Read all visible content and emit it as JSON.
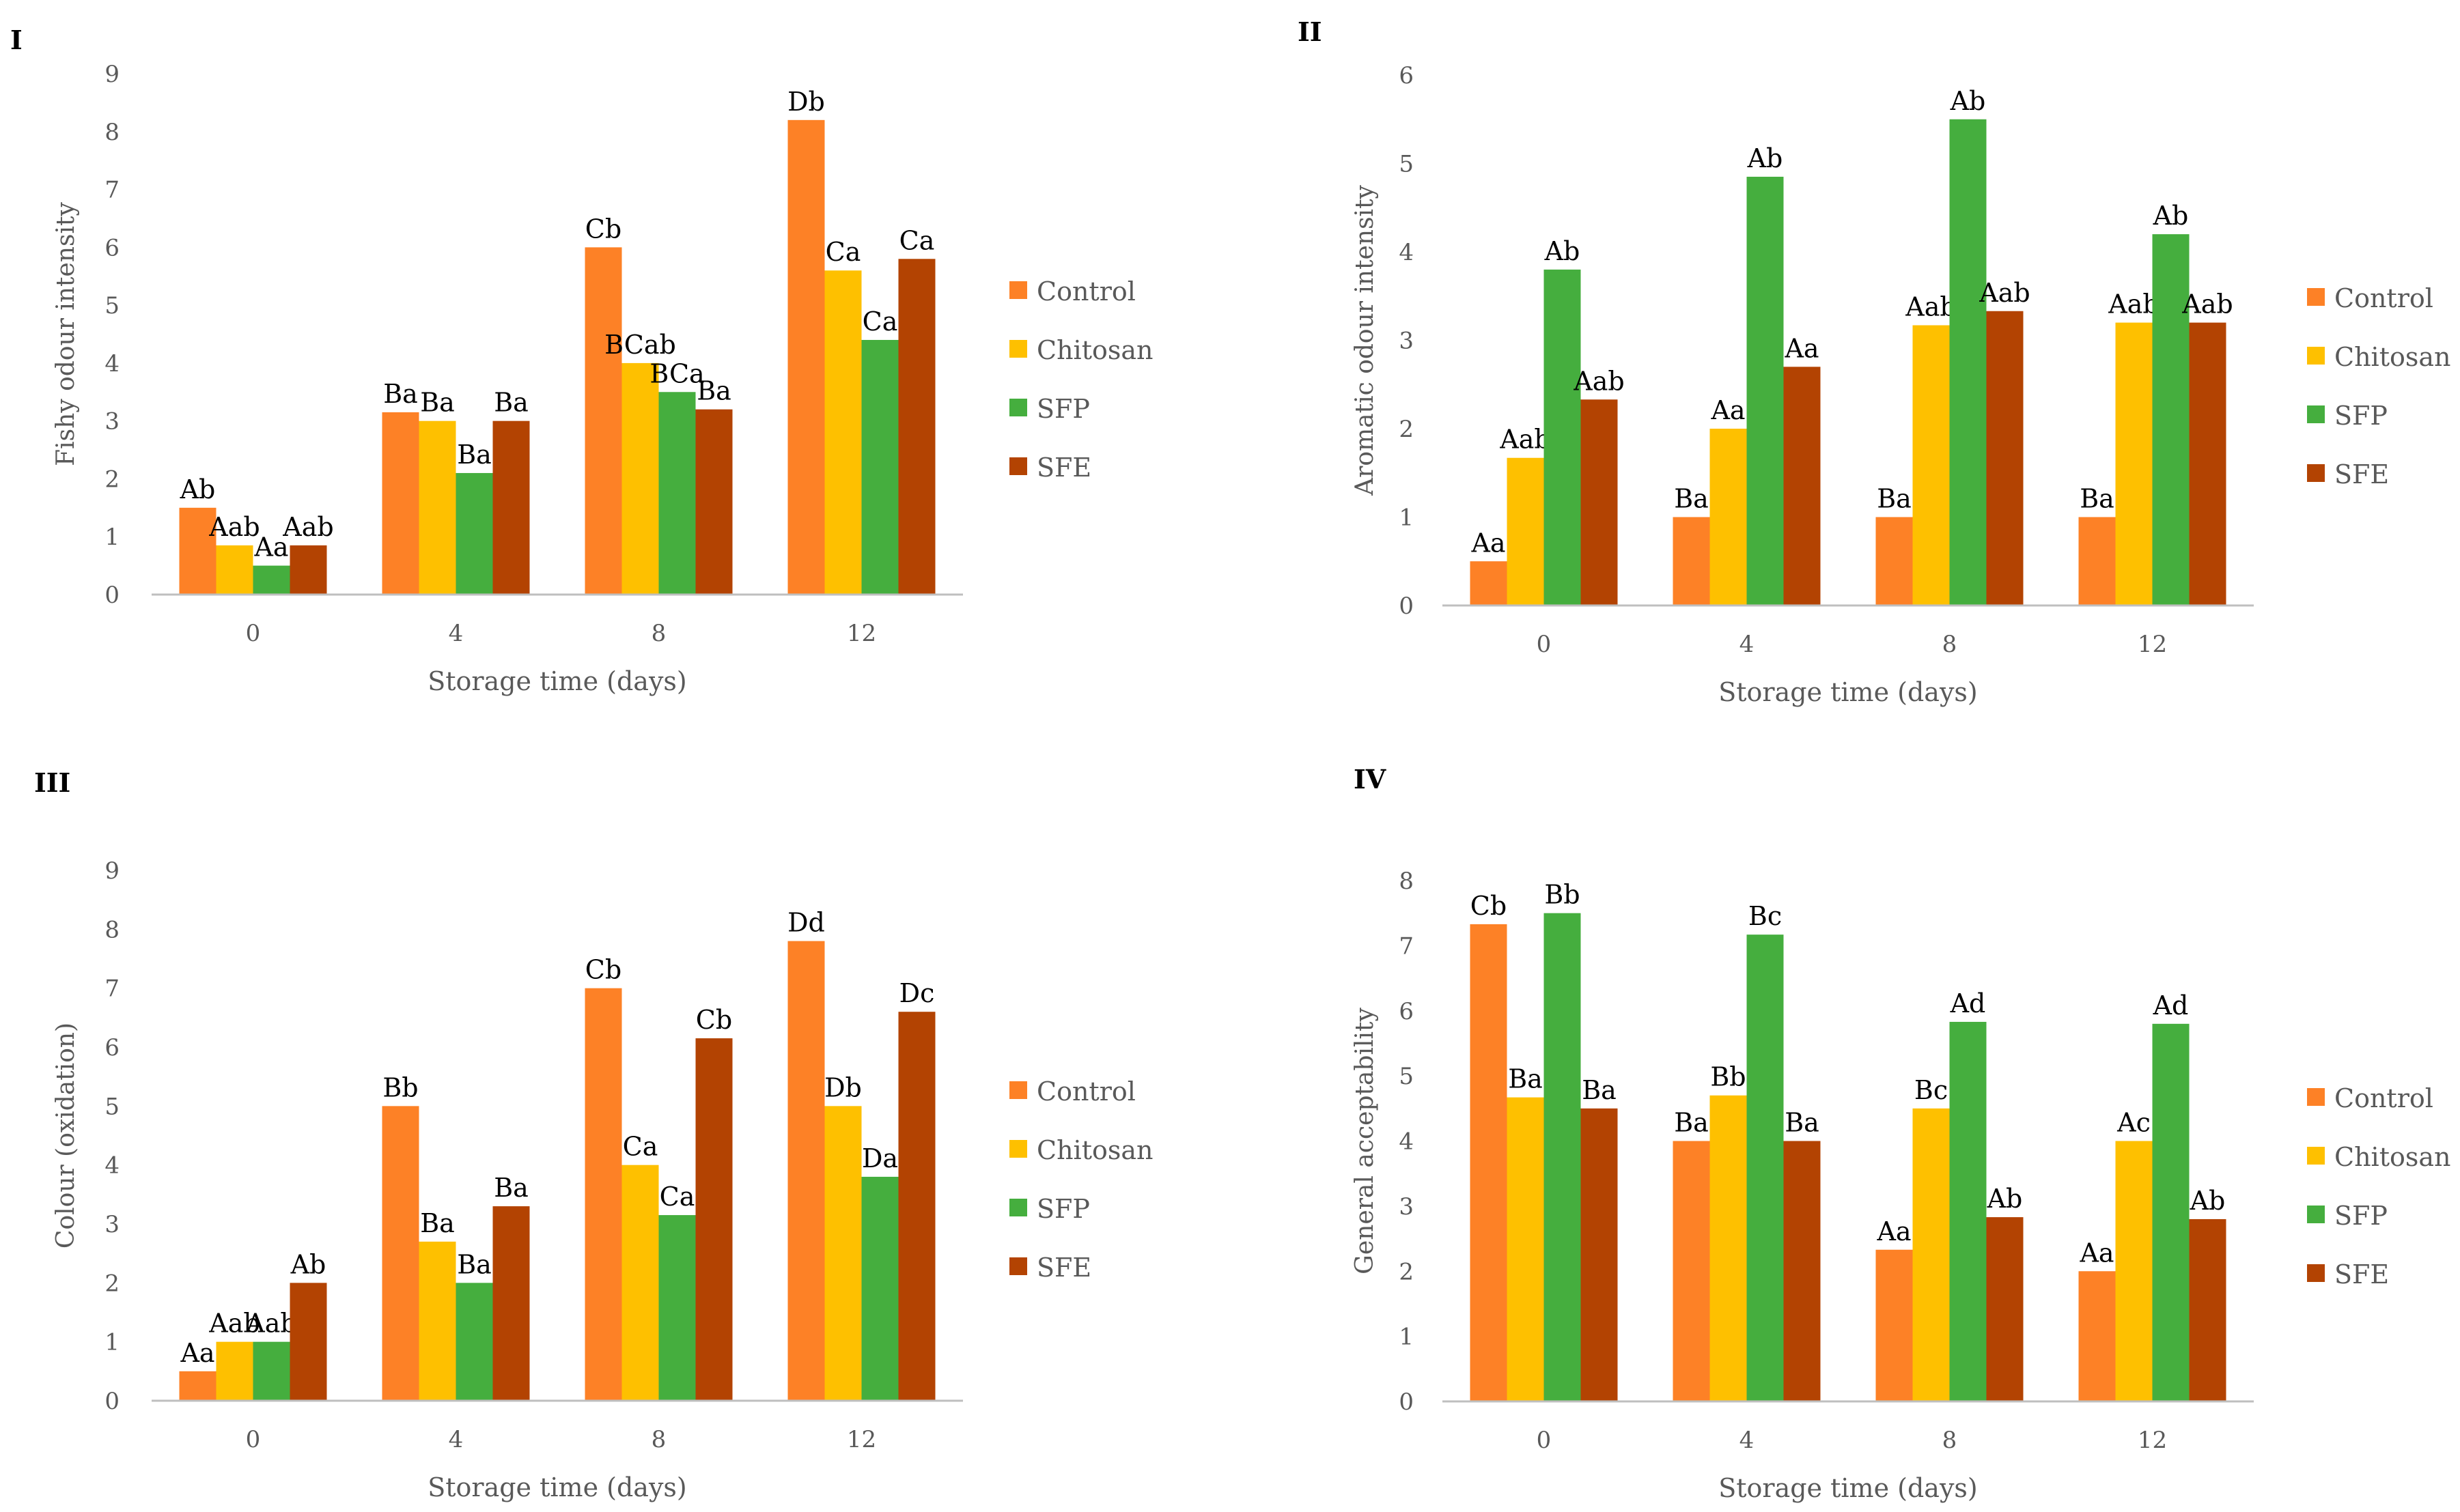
{
  "colors": {
    "Control": "#fd8126",
    "Chitosan": "#fec000",
    "SFP": "#45ae3e",
    "SFE": "#b34302",
    "axis": "#bfbfbf",
    "text": "#595959",
    "label": "#000000"
  },
  "chart_data": [
    {
      "panel": "I",
      "type": "bar",
      "title": "",
      "xlabel": "Storage time (days)",
      "ylabel": "Fishy odour intensity",
      "categories": [
        "0",
        "4",
        "8",
        "12"
      ],
      "ylim": [
        0,
        9
      ],
      "yticks": [
        "0",
        "1",
        "2",
        "3",
        "4",
        "5",
        "6",
        "7",
        "8",
        "9"
      ],
      "grid": false,
      "legend_position": "right",
      "series": [
        {
          "name": "Control",
          "values": [
            1.5,
            3.15,
            6.0,
            8.2
          ],
          "labels": [
            "Ab",
            "Ba",
            "Cb",
            "Db"
          ]
        },
        {
          "name": "Chitosan",
          "values": [
            0.85,
            3.0,
            4.0,
            5.6
          ],
          "labels": [
            "Aab",
            "Ba",
            "BCab",
            "Ca"
          ]
        },
        {
          "name": "SFP",
          "values": [
            0.5,
            2.1,
            3.5,
            4.4
          ],
          "labels": [
            "Aa",
            "Ba",
            "BCa",
            "Ca"
          ]
        },
        {
          "name": "SFE",
          "values": [
            0.85,
            3.0,
            3.2,
            5.8
          ],
          "labels": [
            "Aab",
            "Ba",
            "Ba",
            "Ca"
          ]
        }
      ]
    },
    {
      "panel": "II",
      "type": "bar",
      "title": "",
      "xlabel": "Storage time (days)",
      "ylabel": "Aromatic odour intensity",
      "categories": [
        "0",
        "4",
        "8",
        "12"
      ],
      "ylim": [
        0,
        6
      ],
      "yticks": [
        "0",
        "1",
        "2",
        "3",
        "4",
        "5",
        "6"
      ],
      "grid": false,
      "legend_position": "right",
      "series": [
        {
          "name": "Control",
          "values": [
            0.5,
            1.0,
            1.0,
            1.0
          ],
          "labels": [
            "Aa",
            "Ba",
            "Ba",
            "Ba"
          ]
        },
        {
          "name": "Chitosan",
          "values": [
            1.67,
            2.0,
            3.17,
            3.2
          ],
          "labels": [
            "Aab",
            "Aa",
            "Aab",
            "Aab"
          ]
        },
        {
          "name": "SFP",
          "values": [
            3.8,
            4.85,
            5.5,
            4.2
          ],
          "labels": [
            "Ab",
            "Ab",
            "Ab",
            "Ab"
          ]
        },
        {
          "name": "SFE",
          "values": [
            2.33,
            2.7,
            3.33,
            3.2
          ],
          "labels": [
            "Aab",
            "Aa",
            "Aab",
            "Aab"
          ]
        }
      ]
    },
    {
      "panel": "III",
      "type": "bar",
      "title": "",
      "xlabel": "Storage time (days)",
      "ylabel": "Colour (oxidation)",
      "categories": [
        "0",
        "4",
        "8",
        "12"
      ],
      "ylim": [
        0,
        9
      ],
      "yticks": [
        "0",
        "1",
        "2",
        "3",
        "4",
        "5",
        "6",
        "7",
        "8",
        "9"
      ],
      "grid": false,
      "legend_position": "right",
      "series": [
        {
          "name": "Control",
          "values": [
            0.5,
            5.0,
            7.0,
            7.8
          ],
          "labels": [
            "Aa",
            "Bb",
            "Cb",
            "Dd"
          ]
        },
        {
          "name": "Chitosan",
          "values": [
            1.0,
            2.7,
            4.0,
            5.0
          ],
          "labels": [
            "Aab",
            "Ba",
            "Ca",
            "Db"
          ]
        },
        {
          "name": "SFP",
          "values": [
            1.0,
            2.0,
            3.15,
            3.8
          ],
          "labels": [
            "Aab",
            "Ba",
            "Ca",
            "Da"
          ]
        },
        {
          "name": "SFE",
          "values": [
            2.0,
            3.3,
            6.15,
            6.6
          ],
          "labels": [
            "Ab",
            "Ba",
            "Cb",
            "Dc"
          ]
        }
      ]
    },
    {
      "panel": "IV",
      "type": "bar",
      "title": "",
      "xlabel": "Storage time (days)",
      "ylabel": "General acceptability",
      "categories": [
        "0",
        "4",
        "8",
        "12"
      ],
      "ylim": [
        0,
        8
      ],
      "yticks": [
        "0",
        "1",
        "2",
        "3",
        "4",
        "5",
        "6",
        "7",
        "8"
      ],
      "grid": false,
      "legend_position": "right",
      "series": [
        {
          "name": "Control",
          "values": [
            7.33,
            4.0,
            2.33,
            2.0
          ],
          "labels": [
            "Cb",
            "Ba",
            "Aa",
            "Aa"
          ]
        },
        {
          "name": "Chitosan",
          "values": [
            4.67,
            4.7,
            4.5,
            4.0
          ],
          "labels": [
            "Ba",
            "Bb",
            "Bc",
            "Ac"
          ]
        },
        {
          "name": "SFP",
          "values": [
            7.5,
            7.17,
            5.83,
            5.8
          ],
          "labels": [
            "Bb",
            "Bc",
            "Ad",
            "Ad"
          ]
        },
        {
          "name": "SFE",
          "values": [
            4.5,
            4.0,
            2.83,
            2.8
          ],
          "labels": [
            "Ba",
            "Ba",
            "Ab",
            "Ab"
          ]
        }
      ]
    }
  ]
}
